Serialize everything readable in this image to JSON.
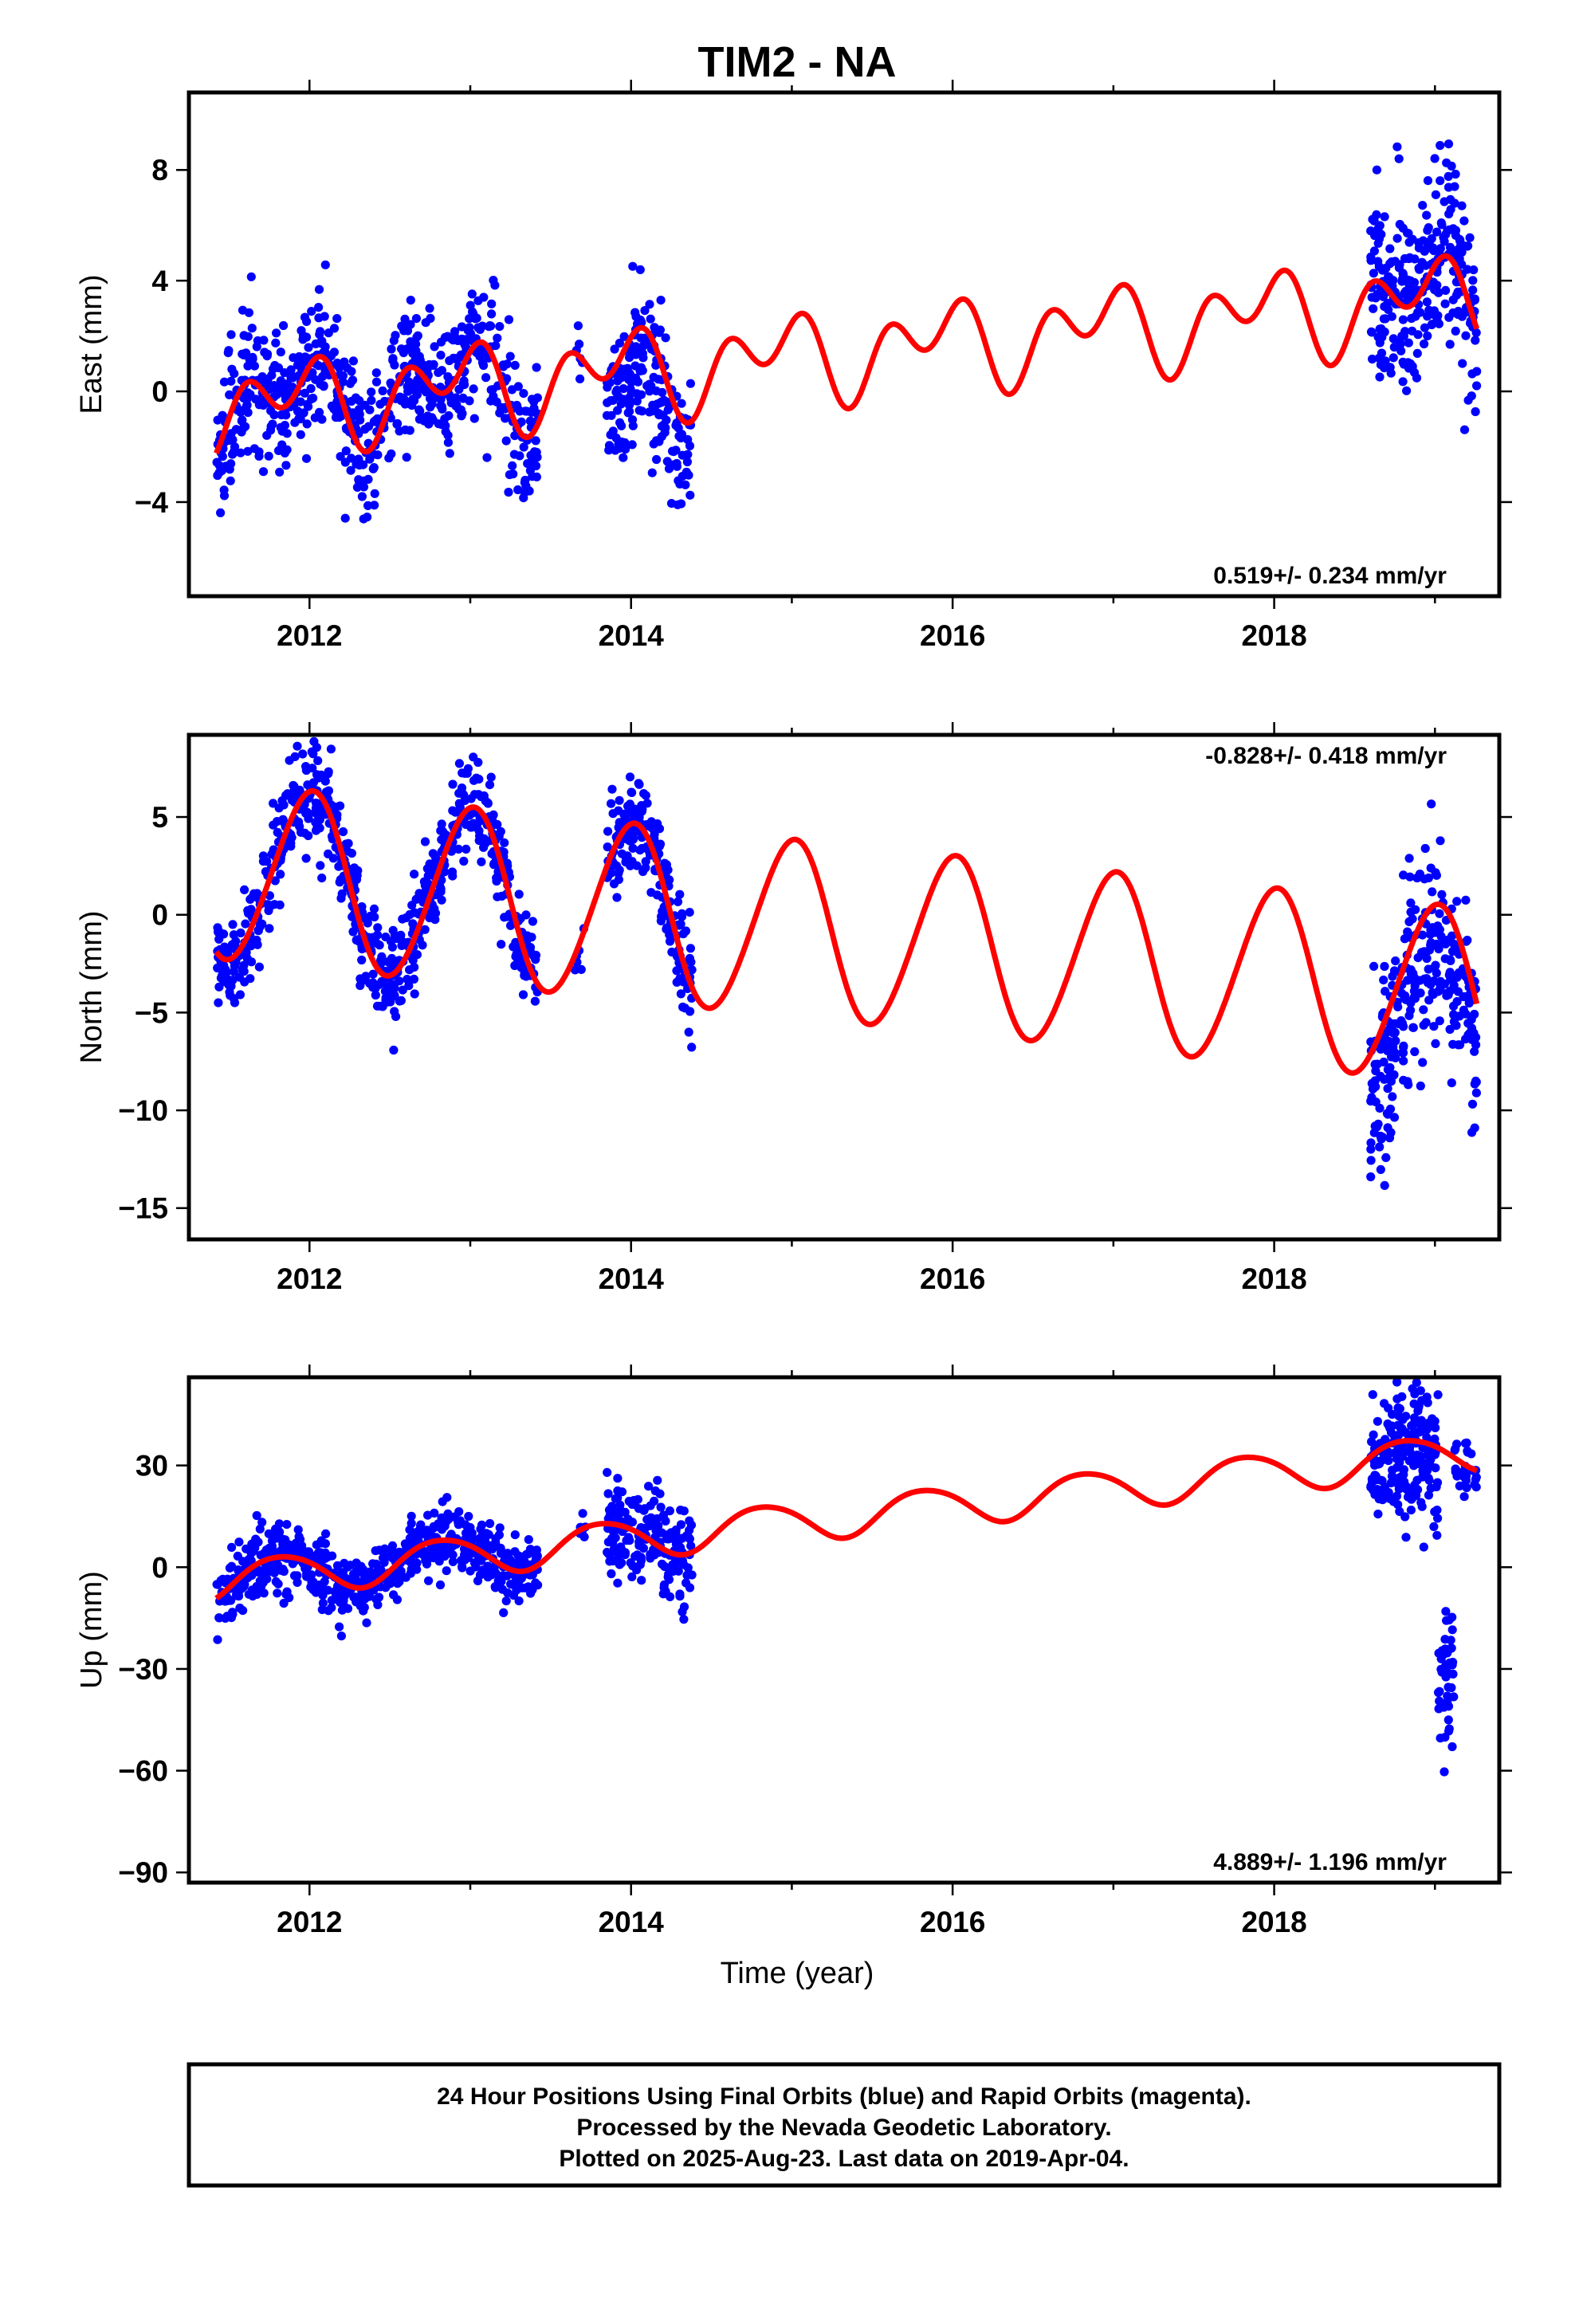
{
  "title": "TIM2 - NA",
  "xlabel": "Time (year)",
  "colors": {
    "data": "#0000ff",
    "model": "#ff0000",
    "frame": "#000000"
  },
  "footer": {
    "line1": "24 Hour Positions Using Final Orbits (blue) and Rapid Orbits (magenta).",
    "line2": "Processed by the Nevada Geodetic Laboratory.",
    "line3": "Plotted on 2025-Aug-23. Last data on 2019-Apr-04."
  },
  "chart_data": [
    {
      "type": "scatter",
      "component": "east",
      "ylabel": "East (mm)",
      "rate_text": "0.519+/- 0.234 mm/yr",
      "rate_position": "bottom-right",
      "xlim": [
        2011.25,
        2019.4
      ],
      "ylim": [
        -7.4,
        10.8
      ],
      "xticks": [
        2012,
        2014,
        2016,
        2018
      ],
      "yticks": [
        -4,
        0,
        4,
        8
      ],
      "grid": false,
      "model": {
        "name": "fit",
        "rate": 0.519,
        "offset": -0.6,
        "ref_year": 2011.45,
        "annual_amp": 1.0,
        "annual_phase": 2.2,
        "semiannual_amp": 1.1,
        "semiannual_phase": 0.4
      },
      "segments": [
        {
          "start": 2011.42,
          "end": 2013.42,
          "n": 680,
          "scatter": 1.15,
          "shift": 0.0
        },
        {
          "start": 2013.65,
          "end": 2013.72,
          "n": 6,
          "scatter": 0.6,
          "shift": 0.2
        },
        {
          "start": 2013.85,
          "end": 2014.38,
          "n": 190,
          "scatter": 1.25,
          "shift": -1.2
        },
        {
          "start": 2018.6,
          "end": 2019.26,
          "n": 290,
          "scatter": 1.7,
          "shift": 0.2
        }
      ]
    },
    {
      "type": "scatter",
      "component": "north",
      "ylabel": "North (mm)",
      "rate_text": "-0.828+/- 0.418 mm/yr",
      "rate_position": "top-right",
      "xlim": [
        2011.25,
        2019.4
      ],
      "ylim": [
        -16.6,
        9.2
      ],
      "xticks": [
        2012,
        2014,
        2016,
        2018
      ],
      "yticks": [
        -15,
        -10,
        -5,
        0,
        5
      ],
      "grid": false,
      "model": {
        "name": "fit",
        "rate": -0.828,
        "offset": 2.2,
        "ref_year": 2011.45,
        "annual_amp": 4.5,
        "annual_phase": 1.55,
        "semiannual_amp": 0.3,
        "semiannual_phase": 0.2
      },
      "segments": [
        {
          "start": 2011.42,
          "end": 2013.42,
          "n": 700,
          "scatter": 1.3,
          "shift": 0.0
        },
        {
          "start": 2013.65,
          "end": 2013.72,
          "n": 6,
          "scatter": 1.2,
          "shift": 0.0
        },
        {
          "start": 2013.85,
          "end": 2014.38,
          "n": 200,
          "scatter": 1.3,
          "shift": 0.0
        },
        {
          "start": 2018.6,
          "end": 2019.26,
          "n": 290,
          "scatter": 2.6,
          "shift": -2.3
        }
      ]
    },
    {
      "type": "scatter",
      "component": "up",
      "ylabel": "Up (mm)",
      "rate_text": "4.889+/- 1.196 mm/yr",
      "rate_position": "bottom-right",
      "xlim": [
        2011.25,
        2019.4
      ],
      "ylim": [
        -93,
        56
      ],
      "xticks": [
        2012,
        2014,
        2016,
        2018
      ],
      "yticks": [
        -90,
        -60,
        -30,
        0,
        30
      ],
      "grid": false,
      "model": {
        "name": "fit",
        "rate": 4.889,
        "offset": -4.0,
        "ref_year": 2011.45,
        "annual_amp": 5.8,
        "annual_phase": 2.7,
        "semiannual_amp": 0.6,
        "semiannual_phase": 0.4
      },
      "segments": [
        {
          "start": 2011.42,
          "end": 2013.42,
          "n": 680,
          "scatter": 4.8,
          "shift": 0.0
        },
        {
          "start": 2013.65,
          "end": 2013.72,
          "n": 6,
          "scatter": 3.0,
          "shift": 0.0
        },
        {
          "start": 2013.85,
          "end": 2014.38,
          "n": 190,
          "scatter": 7.5,
          "shift": 0.0
        },
        {
          "start": 2018.6,
          "end": 2019.02,
          "n": 230,
          "scatter": 9.5,
          "shift": -4.0
        },
        {
          "start": 2019.02,
          "end": 2019.12,
          "n": 45,
          "scatter": 14.0,
          "shift": -65.0
        },
        {
          "start": 2019.12,
          "end": 2019.26,
          "n": 30,
          "scatter": 4.5,
          "shift": 0.0
        }
      ]
    }
  ]
}
